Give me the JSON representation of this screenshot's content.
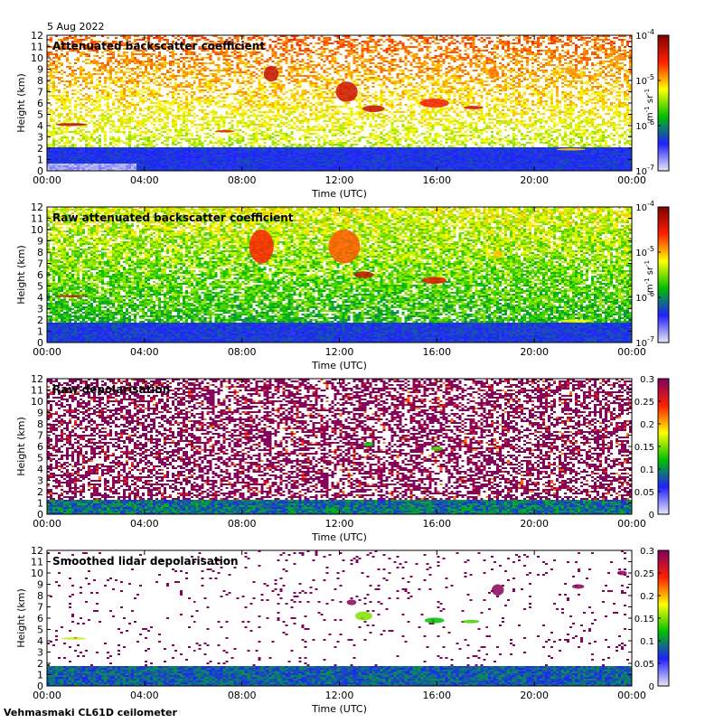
{
  "date": "5 Aug 2022",
  "instrument": "Vehmasmaki CL61D ceilometer",
  "chart_data": [
    {
      "type": "heatmap",
      "title": "Attenuated backscatter coefficient",
      "xlabel": "Time (UTC)",
      "ylabel": "Height (km)",
      "x_ticks": [
        "00:00",
        "04:00",
        "08:00",
        "12:00",
        "16:00",
        "20:00",
        "00:00"
      ],
      "y_ticks": [
        "0",
        "1",
        "2",
        "3",
        "4",
        "5",
        "6",
        "7",
        "8",
        "9",
        "10",
        "11",
        "12"
      ],
      "ylim": [
        0,
        12
      ],
      "colorbar": {
        "scale": "log",
        "range": [
          1e-07,
          0.0001
        ],
        "unit_html": "m<tspan dy='-4' font-size='7'>-1</tspan><tspan dy='4'> sr</tspan><tspan dy='-4' font-size='7'>-1</tspan>",
        "tick_labels": [
          "10-7",
          "10-6",
          "10-5",
          "10-4"
        ]
      },
      "colors": [
        "#e8e8f8",
        "#2020ff",
        "#00c000",
        "#ffff00",
        "#ff2000",
        "#800000"
      ]
    },
    {
      "type": "heatmap",
      "title": "Raw attenuated backscatter coefficient",
      "xlabel": "Time (UTC)",
      "ylabel": "Height (km)",
      "x_ticks": [
        "00:00",
        "04:00",
        "08:00",
        "12:00",
        "16:00",
        "20:00",
        "00:00"
      ],
      "y_ticks": [
        "0",
        "1",
        "2",
        "3",
        "4",
        "5",
        "6",
        "7",
        "8",
        "9",
        "10",
        "11",
        "12"
      ],
      "ylim": [
        0,
        12
      ],
      "colorbar": {
        "scale": "log",
        "range": [
          1e-07,
          0.0001
        ],
        "tick_labels": [
          "10-7",
          "10-6",
          "10-5",
          "10-4"
        ]
      },
      "colors": [
        "#e8e8f8",
        "#2020ff",
        "#00c000",
        "#ffff00",
        "#ff2000",
        "#800000"
      ]
    },
    {
      "type": "heatmap",
      "title": "Raw depolarisation",
      "xlabel": "Time (UTC)",
      "ylabel": "Height (km)",
      "x_ticks": [
        "00:00",
        "04:00",
        "08:00",
        "12:00",
        "16:00",
        "20:00",
        "00:00"
      ],
      "y_ticks": [
        "0",
        "1",
        "2",
        "3",
        "4",
        "5",
        "6",
        "7",
        "8",
        "9",
        "10",
        "11",
        "12"
      ],
      "ylim": [
        0,
        12
      ],
      "colorbar": {
        "scale": "linear",
        "range": [
          0,
          0.3
        ],
        "tick_labels": [
          "0",
          "0.05",
          "0.1",
          "0.15",
          "0.2",
          "0.25",
          "0.3"
        ]
      },
      "colors": [
        "#e8e8f8",
        "#2020ff",
        "#00c000",
        "#ffff00",
        "#ff2000",
        "#800060"
      ]
    },
    {
      "type": "heatmap",
      "title": "Smoothed lidar depolarisation",
      "xlabel": "Time (UTC)",
      "ylabel": "Height (km)",
      "x_ticks": [
        "00:00",
        "04:00",
        "08:00",
        "12:00",
        "16:00",
        "20:00",
        "00:00"
      ],
      "y_ticks": [
        "0",
        "1",
        "2",
        "3",
        "4",
        "5",
        "6",
        "7",
        "8",
        "9",
        "10",
        "11",
        "12"
      ],
      "ylim": [
        0,
        12
      ],
      "colorbar": {
        "scale": "linear",
        "range": [
          0,
          0.3
        ],
        "tick_labels": [
          "0",
          "0.05",
          "0.1",
          "0.15",
          "0.2",
          "0.25",
          "0.3"
        ]
      },
      "colors": [
        "#e8e8f8",
        "#2020ff",
        "#00c000",
        "#ffff00",
        "#ff2000",
        "#800060"
      ]
    }
  ]
}
